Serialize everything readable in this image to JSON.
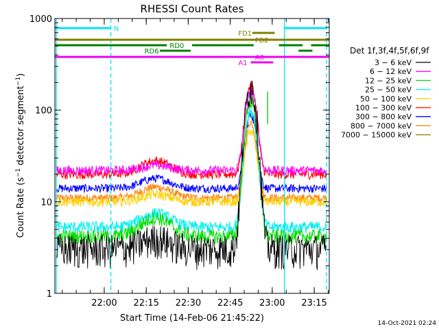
{
  "chart_data": {
    "type": "line",
    "title": "RHESSI Count Rates",
    "xlabel": "Start Time (14-Feb-06 21:45:22)",
    "ylabel_parts": [
      "Count Rate (s",
      "−1",
      " detector segment",
      "−1",
      ")"
    ],
    "yscale": "log",
    "ylim": [
      1,
      1000
    ],
    "x_units": "minutes after 21:45:22",
    "xlim": [
      -3,
      95
    ],
    "y_ticks": [
      1,
      10,
      100,
      1000
    ],
    "y_tick_labels": [
      "1",
      "10",
      "100",
      "1000"
    ],
    "x_ticks": [
      14.63,
      29.63,
      44.63,
      59.63,
      74.63,
      89.63
    ],
    "x_tick_labels": [
      "22:00",
      "22:15",
      "22:30",
      "22:45",
      "23:00",
      "23:15"
    ],
    "legend_title": "Det 1f,3f,4f,5f,6f,9f",
    "legend_position": "right",
    "timestamp": "14-Oct-2021 02:24",
    "flag_bars": [
      {
        "label": "N",
        "color": "#00e5ee",
        "y_rank": 1,
        "segments": [
          [
            -3,
            17
          ],
          [
            79,
            94
          ]
        ],
        "label_x": 18
      },
      {
        "label": "FD1",
        "color": "#808000",
        "y_rank": 2,
        "segments": [
          [
            67.5,
            75.5
          ]
        ],
        "label_x": 62.5
      },
      {
        "label": "FD2",
        "color": "#808000",
        "y_rank": 3,
        "segments": [
          [
            -3,
            95
          ]
        ],
        "label_x": 68.5
      },
      {
        "label": "RD0",
        "color": "#008000",
        "y_rank": 4,
        "segments": [
          [
            -3,
            37
          ],
          [
            46,
            68
          ],
          [
            77,
            85.5
          ],
          [
            88.5,
            95
          ]
        ],
        "label_x": 38
      },
      {
        "label": "RD6",
        "color": "#008000",
        "y_rank": 5,
        "segments": [
          [
            34.5,
            45.5
          ],
          [
            84,
            89
          ]
        ],
        "label_x": 29
      },
      {
        "label": "A0",
        "color": "#ee00ee",
        "y_rank": 6,
        "segments": [
          [
            -3,
            95
          ]
        ],
        "label_x": 68.5
      },
      {
        "label": "A1",
        "color": "#ee00ee",
        "y_rank": 7,
        "segments": [
          [
            67,
            75
          ]
        ],
        "label_x": 62.5
      }
    ],
    "vertical_markers": [
      {
        "x": -2.5,
        "style": "solid",
        "color": "#00e5ee"
      },
      {
        "x": 17,
        "style": "dashed",
        "color": "#00e5ee"
      },
      {
        "x": 79,
        "style": "solid",
        "color": "#00e5ee"
      },
      {
        "x": 94,
        "style": "dashed",
        "color": "#00e5ee"
      },
      {
        "x": 73,
        "style": "solid",
        "color": "#00cc00"
      }
    ],
    "series": [
      {
        "name": "3 − 6 keV",
        "color": "#000000",
        "base": 3.1,
        "noise": 0.14,
        "bump": 0.9,
        "peak": 180
      },
      {
        "name": "6 − 12 keV",
        "color": "#ff00ff",
        "base": 22,
        "noise": 0.04,
        "bump": 3,
        "peak": 140
      },
      {
        "name": "12 − 25 keV",
        "color": "#00dd00",
        "base": 4.2,
        "noise": 0.06,
        "bump": 2.5,
        "peak": 120
      },
      {
        "name": "25 − 50 keV",
        "color": "#00eeee",
        "base": 5.3,
        "noise": 0.05,
        "bump": 2.2,
        "peak": 95
      },
      {
        "name": "50 − 100 keV",
        "color": "#ffd000",
        "base": 10,
        "noise": 0.04,
        "bump": 2,
        "peak": 50
      },
      {
        "name": "100 − 300 keV",
        "color": "#ff0000",
        "base": 20,
        "noise": 0.04,
        "bump": 8,
        "peak": 165
      },
      {
        "name": "300 − 800 keV",
        "color": "#0000ff",
        "base": 14,
        "noise": 0.035,
        "bump": 4,
        "peak": 75
      },
      {
        "name": "800 − 7000 keV",
        "color": "#ff8000",
        "base": 11,
        "noise": 0.035,
        "bump": 3.5,
        "peak": 63
      },
      {
        "name": "7000 − 15000 keV",
        "color": "#8b7d00",
        "base": 0,
        "noise": 0,
        "bump": 0,
        "peak": 0
      }
    ],
    "flare_peak_x": 67,
    "flare_width": 2.3
  }
}
